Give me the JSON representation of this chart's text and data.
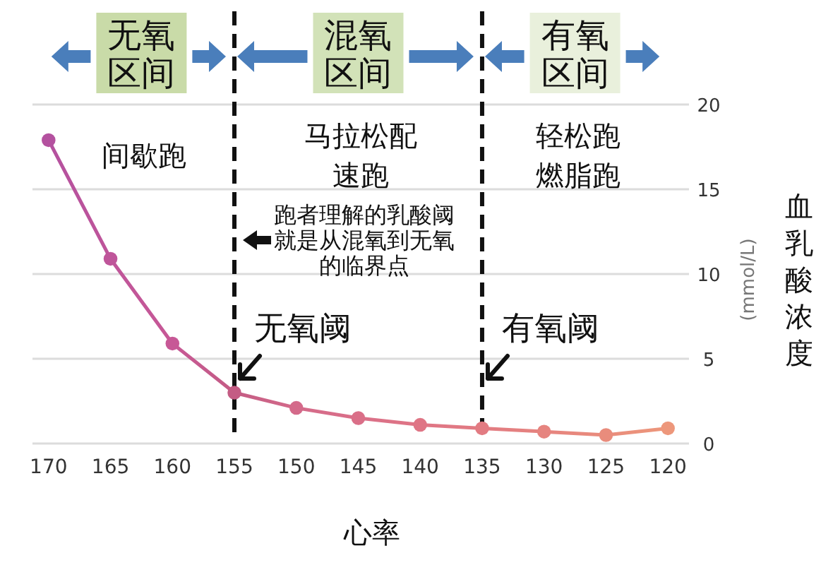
{
  "chart_data": {
    "type": "line",
    "x": [
      170,
      165,
      160,
      155,
      150,
      145,
      140,
      135,
      130,
      125,
      120
    ],
    "series": [
      {
        "values": [
          17.9,
          10.9,
          5.9,
          3.0,
          2.1,
          1.5,
          1.1,
          0.9,
          0.7,
          0.5,
          0.9
        ],
        "colors": [
          "#b4519f",
          "#bf559a",
          "#c75896",
          "#c45c84",
          "#d46a8a",
          "#da6f88",
          "#df7585",
          "#e27b82",
          "#e6847f",
          "#e98c7c",
          "#ed977b"
        ]
      }
    ],
    "xlabel": "心率",
    "ylabel": "血乳酸浓度\n(mmol/L)",
    "xlim": [
      171.3,
      118.3
    ],
    "xticks": [
      170,
      165,
      160,
      155,
      150,
      145,
      140,
      135,
      130,
      125,
      120
    ],
    "ylim": [
      0,
      20
    ],
    "yticks": [
      0,
      5,
      10,
      15,
      20
    ],
    "grid": "y",
    "marker": "circle",
    "ref_lines": [
      {
        "axis": "x",
        "value": 155,
        "label": "无氧阈",
        "color": "#111111",
        "line_style": "dashed"
      },
      {
        "axis": "x",
        "value": 135,
        "label": "有氧阈",
        "color": "#111111",
        "line_style": "dashed"
      }
    ],
    "annotations": [
      "无氧区间",
      "混氧区间",
      "有氧区间",
      "间歇跑",
      "马拉松配速跑",
      "轻松跑燃脂跑",
      {
        "text": "跑者理解的乳酸阈就是从混氧到无氧的临界点",
        "x": 155,
        "y": 12
      }
    ]
  }
}
